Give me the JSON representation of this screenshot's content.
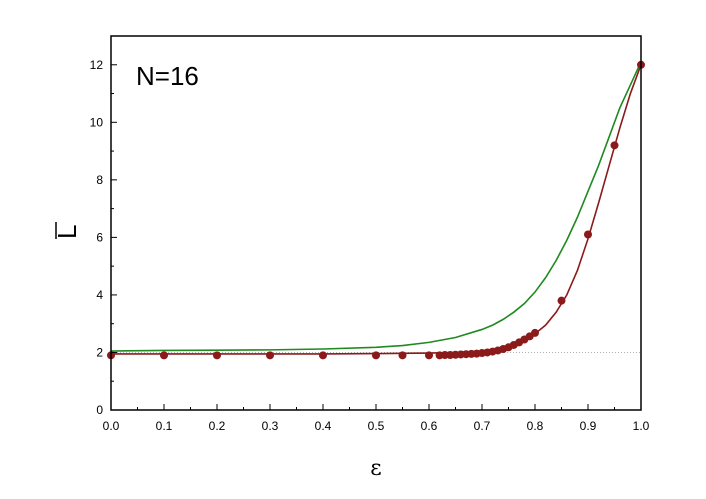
{
  "chart_data": {
    "type": "scatter",
    "title": "",
    "annotation": "N=16",
    "xlabel": "ε",
    "ylabel": "L",
    "xlim": [
      0.0,
      1.0
    ],
    "ylim": [
      0,
      13
    ],
    "xticks": [
      0.0,
      0.1,
      0.2,
      0.3,
      0.4,
      0.5,
      0.6,
      0.7,
      0.8,
      0.9,
      1.0
    ],
    "xtick_labels": [
      "0.0",
      "0.1",
      "0.2",
      "0.3",
      "0.4",
      "0.5",
      "0.6",
      "0.7",
      "0.8",
      "0.9",
      "1.0"
    ],
    "yticks": [
      0,
      2,
      4,
      6,
      8,
      10,
      12
    ],
    "ytick_labels": [
      "0",
      "2",
      "4",
      "6",
      "8",
      "10",
      "12"
    ],
    "reference_line_y": 2,
    "grid": false,
    "legend": "none",
    "series": [
      {
        "kind": "points",
        "color": "#8b1a1a",
        "x": [
          0.0,
          0.1,
          0.2,
          0.3,
          0.4,
          0.5,
          0.55,
          0.6,
          0.62,
          0.63,
          0.64,
          0.65,
          0.66,
          0.67,
          0.68,
          0.69,
          0.7,
          0.71,
          0.72,
          0.73,
          0.74,
          0.75,
          0.76,
          0.77,
          0.78,
          0.79,
          0.8,
          0.85,
          0.9,
          0.95,
          1.0
        ],
        "y": [
          1.9,
          1.9,
          1.9,
          1.9,
          1.9,
          1.9,
          1.9,
          1.9,
          1.9,
          1.91,
          1.91,
          1.92,
          1.93,
          1.94,
          1.95,
          1.96,
          1.98,
          2.0,
          2.03,
          2.07,
          2.12,
          2.18,
          2.26,
          2.35,
          2.45,
          2.56,
          2.68,
          3.8,
          6.1,
          9.2,
          12.0
        ]
      },
      {
        "kind": "line",
        "color": "#8b1a1a",
        "x": [
          0.0,
          0.1,
          0.2,
          0.3,
          0.4,
          0.5,
          0.55,
          0.6,
          0.65,
          0.7,
          0.72,
          0.74,
          0.76,
          0.78,
          0.8,
          0.82,
          0.84,
          0.86,
          0.88,
          0.9,
          0.92,
          0.94,
          0.96,
          0.98,
          1.0
        ],
        "y": [
          1.95,
          1.95,
          1.95,
          1.95,
          1.95,
          1.96,
          1.97,
          1.98,
          2.0,
          2.05,
          2.1,
          2.17,
          2.27,
          2.42,
          2.65,
          2.95,
          3.4,
          4.0,
          4.85,
          5.95,
          7.2,
          8.5,
          9.8,
          11.0,
          12.0
        ]
      },
      {
        "kind": "line",
        "color": "#1f8a1f",
        "x": [
          0.0,
          0.1,
          0.2,
          0.3,
          0.4,
          0.5,
          0.55,
          0.6,
          0.65,
          0.7,
          0.72,
          0.74,
          0.76,
          0.78,
          0.8,
          0.82,
          0.84,
          0.86,
          0.88,
          0.9,
          0.92,
          0.94,
          0.96,
          0.98,
          1.0
        ],
        "y": [
          2.05,
          2.07,
          2.08,
          2.09,
          2.12,
          2.18,
          2.24,
          2.35,
          2.52,
          2.8,
          2.95,
          3.15,
          3.4,
          3.7,
          4.1,
          4.6,
          5.2,
          5.9,
          6.7,
          7.6,
          8.5,
          9.5,
          10.5,
          11.3,
          12.1
        ]
      }
    ]
  }
}
